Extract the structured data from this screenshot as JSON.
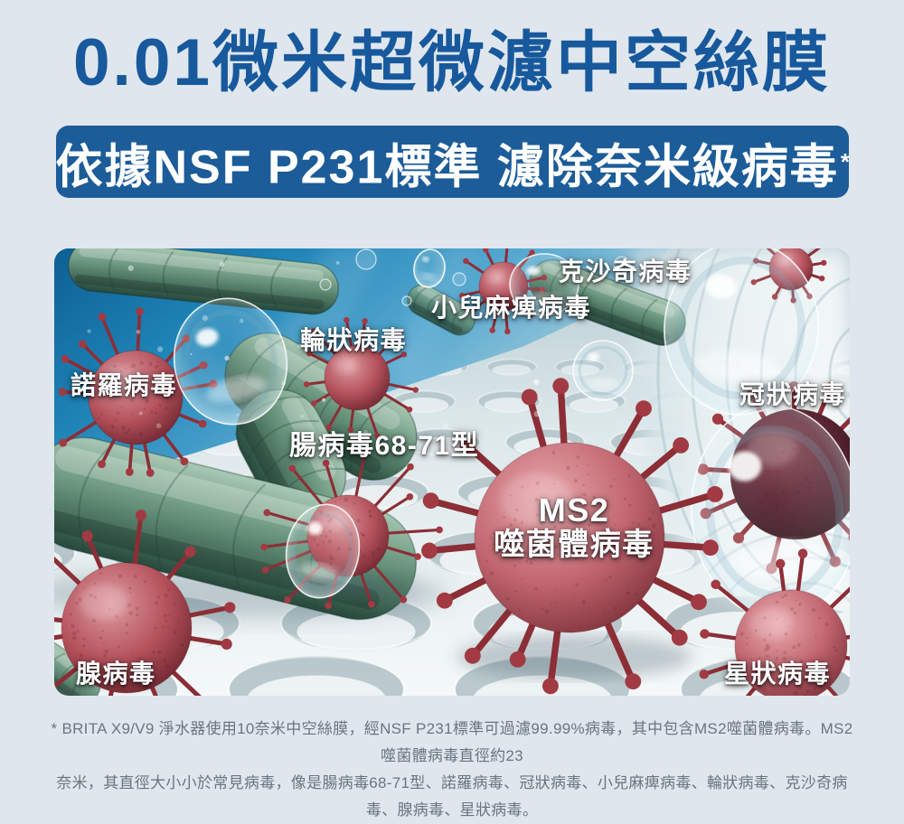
{
  "header": {
    "title": "0.01微米超微濾中空絲膜",
    "subtitle": "依據NSF P231標準 濾除奈米級病毒",
    "footnote_marker": "*"
  },
  "illustration": {
    "labels": {
      "coxsackievirus": "克沙奇病毒",
      "poliovirus": "小兒麻痺病毒",
      "rotavirus": "輪狀病毒",
      "norovirus": "諾羅病毒",
      "coronavirus": "冠狀病毒",
      "enterovirus": "腸病毒68-71型",
      "ms2_line1": "MS2",
      "ms2_line2": "噬菌體病毒",
      "adenovirus": "腺病毒",
      "astrovirus": "星狀病毒"
    }
  },
  "footnote": {
    "line1": "* BRITA X9/V9 淨水器使用10奈米中空絲膜，經NSF P231標準可過濾99.99%病毒，其中包含MS2噬菌體病毒。MS2噬菌體病毒直徑約23",
    "line2": "奈米，其直徑大小小於常見病毒，像是腸病毒68-71型、諾羅病毒、冠狀病毒、小兒麻痺病毒、輪狀病毒、克沙奇病毒、腺病毒、星狀病毒。"
  },
  "colors": {
    "background": "#dfe6ee",
    "title_text": "#17599c",
    "banner_bg": "#1c5c99",
    "banner_text": "#ffffff",
    "label_text": "#ffffff",
    "footnote_text": "#6a7581",
    "water_blue": "#2a86b6",
    "membrane_white": "#eef4f5",
    "virus_red": "#b5525c",
    "bacteria_green": "#68947c"
  }
}
